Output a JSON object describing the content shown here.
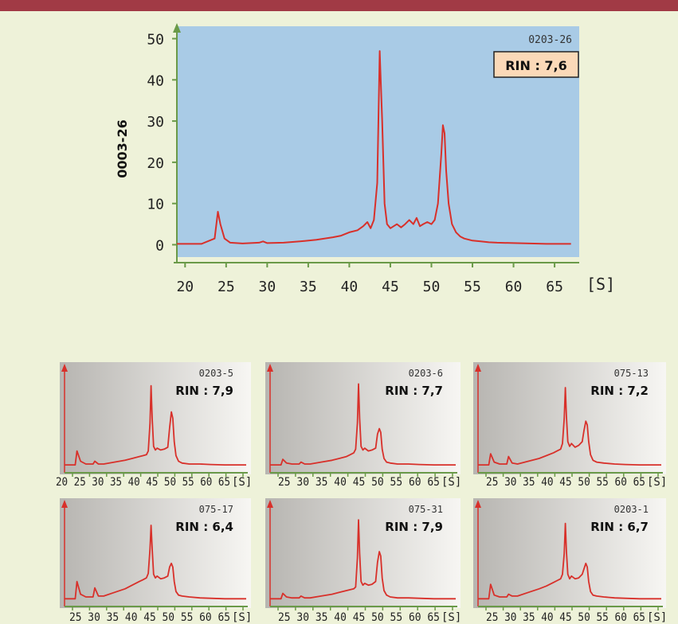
{
  "colors": {
    "background": "#eef2d9",
    "top_bar": "#a13a45",
    "main_plot_bg": "#a9cbe6",
    "trace": "#d8302a",
    "axis": "#6a9a48",
    "rin_box_bg": "#fbd9b8",
    "small_plot_bg_dark": "#b7b5b1",
    "small_plot_bg_light": "#f7f6f3"
  },
  "chart_data": [
    {
      "id": "main",
      "type": "line",
      "sample_id": "0203-26",
      "rin_label": "RIN : 7,6",
      "ylabel": "0003-26",
      "x_unit_label": "[S]",
      "xlim": [
        19,
        68
      ],
      "ylim": [
        -3,
        53
      ],
      "x_ticks": [
        20,
        25,
        30,
        35,
        40,
        45,
        50,
        55,
        60,
        65
      ],
      "y_ticks": [
        0,
        10,
        20,
        30,
        40,
        50
      ],
      "grid": false,
      "series": [
        {
          "x": [
            19,
            20,
            22,
            23.6,
            24,
            24.3,
            24.8,
            25.5,
            27,
            29,
            29.5,
            30,
            32,
            34,
            36,
            38,
            39,
            40,
            41,
            41.7,
            42.2,
            42.6,
            43,
            43.4,
            43.7,
            44,
            44.3,
            44.6,
            45,
            45.4,
            45.8,
            46.3,
            46.8,
            47.3,
            47.8,
            48.2,
            48.6,
            49,
            49.5,
            50,
            50.4,
            50.8,
            51.2,
            51.4,
            51.6,
            51.8,
            52.1,
            52.5,
            53,
            53.5,
            54,
            55,
            56,
            57,
            58,
            60,
            62,
            64,
            66,
            67
          ],
          "y": [
            0.2,
            0.2,
            0.2,
            1.5,
            8,
            5,
            1.5,
            0.5,
            0.3,
            0.5,
            0.8,
            0.4,
            0.5,
            0.8,
            1.2,
            1.8,
            2.2,
            3,
            3.5,
            4.5,
            5.5,
            4,
            6,
            15,
            47,
            30,
            10,
            5,
            4,
            4.5,
            5,
            4.2,
            5,
            6,
            5,
            6.5,
            4.5,
            5,
            5.5,
            5,
            6,
            10,
            22,
            29,
            27,
            18,
            10,
            5,
            3,
            2,
            1.5,
            1,
            0.8,
            0.6,
            0.5,
            0.4,
            0.3,
            0.2,
            0.2,
            0.2
          ]
        }
      ]
    },
    {
      "id": "s1",
      "type": "line",
      "sample_id": "0203-5",
      "rin_label": "RIN : 7,9",
      "x_axis_text": "20 25 30 35 40 45 50 55 60 65",
      "x_unit_label": "[S]",
      "xlim": [
        17,
        68
      ],
      "ylim": [
        0,
        100
      ],
      "series": [
        {
          "x": [
            17,
            19,
            20,
            20.5,
            21.5,
            23,
            25,
            25.5,
            26.5,
            28,
            31,
            34,
            36,
            38,
            39,
            40,
            40.5,
            41,
            41.3,
            41.6,
            42,
            42.5,
            43,
            44,
            45,
            46,
            46.5,
            47,
            47.4,
            47.8,
            48.3,
            49,
            50,
            52,
            55,
            58,
            62,
            66,
            68
          ],
          "y": [
            5,
            5,
            5,
            20,
            9,
            6,
            6,
            9,
            6,
            6,
            8,
            10,
            12,
            14,
            15,
            16,
            20,
            50,
            90,
            55,
            25,
            21,
            23,
            21,
            22,
            24,
            45,
            62,
            55,
            30,
            15,
            9,
            7,
            6,
            6,
            5.5,
            5,
            5,
            5
          ]
        }
      ]
    },
    {
      "id": "s2",
      "type": "line",
      "sample_id": "0203-6",
      "rin_label": "RIN : 7,7",
      "x_axis_text": "25 30 35 40 45 50 55 60 65",
      "x_unit_label": "[S]",
      "xlim": [
        17,
        68
      ],
      "ylim": [
        0,
        100
      ],
      "series": [
        {
          "x": [
            17,
            19,
            20,
            20.5,
            21.5,
            23,
            25,
            25.5,
            26.5,
            28,
            31,
            34,
            36,
            38,
            39,
            40,
            40.5,
            41,
            41.3,
            41.6,
            42,
            42.5,
            43,
            44,
            45,
            46,
            46.5,
            47,
            47.4,
            47.8,
            48.3,
            49,
            50,
            52,
            55,
            58,
            62,
            66,
            68
          ],
          "y": [
            5,
            5,
            5,
            11,
            7,
            6,
            6,
            8,
            6,
            6,
            8,
            10,
            12,
            14,
            16,
            18,
            22,
            50,
            92,
            55,
            25,
            21,
            23,
            20,
            21,
            23,
            38,
            44,
            40,
            22,
            12,
            8,
            7,
            6,
            6,
            5.5,
            5,
            5,
            5
          ]
        }
      ]
    },
    {
      "id": "s3",
      "type": "line",
      "sample_id": "075-13",
      "rin_label": "RIN : 7,2",
      "x_axis_text": "25 30 35 40 45 50 55 60 65",
      "x_unit_label": "[S]",
      "xlim": [
        17,
        68
      ],
      "ylim": [
        0,
        100
      ],
      "series": [
        {
          "x": [
            17,
            19,
            20,
            20.5,
            21.5,
            23,
            25,
            25.5,
            26.5,
            28,
            31,
            34,
            36,
            38,
            39,
            40,
            40.5,
            41,
            41.3,
            41.6,
            42,
            42.5,
            43,
            44,
            45,
            46,
            46.5,
            47,
            47.4,
            47.8,
            48.3,
            49,
            50,
            52,
            55,
            58,
            62,
            66,
            68
          ],
          "y": [
            5,
            5,
            5,
            17,
            8,
            6,
            6,
            14,
            7,
            6,
            9,
            12,
            15,
            18,
            20,
            22,
            28,
            55,
            88,
            58,
            30,
            25,
            28,
            24,
            26,
            30,
            42,
            52,
            48,
            30,
            16,
            10,
            8,
            7,
            6,
            5.5,
            5,
            5,
            5
          ]
        }
      ]
    },
    {
      "id": "s4",
      "type": "line",
      "sample_id": "075-17",
      "rin_label": "RIN : 6,4",
      "x_axis_text": "25 30 35 40 45 50 55 60 65",
      "x_unit_label": "[S]",
      "xlim": [
        17,
        68
      ],
      "ylim": [
        0,
        100
      ],
      "series": [
        {
          "x": [
            17,
            19,
            20,
            20.5,
            21.5,
            23,
            25,
            25.5,
            26.5,
            28,
            31,
            34,
            36,
            38,
            39,
            40,
            40.5,
            41,
            41.3,
            41.6,
            42,
            42.5,
            43,
            44,
            45,
            46,
            46.5,
            47,
            47.4,
            47.8,
            48.3,
            49,
            50,
            52,
            55,
            58,
            62,
            66,
            68
          ],
          "y": [
            5,
            5,
            5,
            24,
            10,
            7,
            7,
            17,
            8,
            8,
            12,
            16,
            20,
            24,
            26,
            28,
            33,
            60,
            86,
            60,
            32,
            28,
            30,
            27,
            28,
            30,
            40,
            44,
            40,
            24,
            13,
            9,
            8,
            7,
            6,
            5.5,
            5,
            5,
            5
          ]
        }
      ]
    },
    {
      "id": "s5",
      "type": "line",
      "sample_id": "075-31",
      "rin_label": "RIN : 7,9",
      "x_axis_text": "25 30 35 40 45 50 55 60 65",
      "x_unit_label": "[S]",
      "xlim": [
        17,
        68
      ],
      "ylim": [
        0,
        100
      ],
      "series": [
        {
          "x": [
            17,
            19,
            20,
            20.5,
            21.5,
            23,
            25,
            25.5,
            26.5,
            28,
            31,
            34,
            36,
            38,
            39,
            40,
            40.5,
            41,
            41.3,
            41.6,
            42,
            42.5,
            43,
            44,
            45,
            46,
            46.5,
            47,
            47.4,
            47.8,
            48.3,
            49,
            50,
            52,
            55,
            58,
            62,
            66,
            68
          ],
          "y": [
            5,
            5,
            5,
            11,
            7,
            6,
            6,
            8,
            6,
            6,
            8,
            10,
            12,
            14,
            15,
            16,
            18,
            50,
            92,
            55,
            24,
            20,
            22,
            20,
            21,
            24,
            45,
            57,
            52,
            28,
            14,
            9,
            7,
            6,
            6,
            5.5,
            5,
            5,
            5
          ]
        }
      ]
    },
    {
      "id": "s6",
      "type": "line",
      "sample_id": "0203-1",
      "rin_label": "RIN : 6,7",
      "x_axis_text": "25 30 35 40 45 50 55 60 65",
      "x_unit_label": "[S]",
      "xlim": [
        17,
        68
      ],
      "ylim": [
        0,
        100
      ],
      "series": [
        {
          "x": [
            17,
            19,
            20,
            20.5,
            21.5,
            23,
            25,
            25.5,
            26.5,
            28,
            31,
            34,
            36,
            38,
            39,
            40,
            40.5,
            41,
            41.3,
            41.6,
            42,
            42.5,
            43,
            44,
            45,
            46,
            46.5,
            47,
            47.4,
            47.8,
            48.3,
            49,
            50,
            52,
            55,
            58,
            62,
            66,
            68
          ],
          "y": [
            5,
            5,
            5,
            21,
            9,
            7,
            7,
            10,
            8,
            8,
            12,
            16,
            19,
            23,
            25,
            27,
            32,
            55,
            88,
            58,
            32,
            27,
            30,
            27,
            28,
            32,
            38,
            44,
            40,
            24,
            13,
            9,
            8,
            7,
            6,
            5.5,
            5,
            5,
            5
          ]
        }
      ]
    }
  ]
}
